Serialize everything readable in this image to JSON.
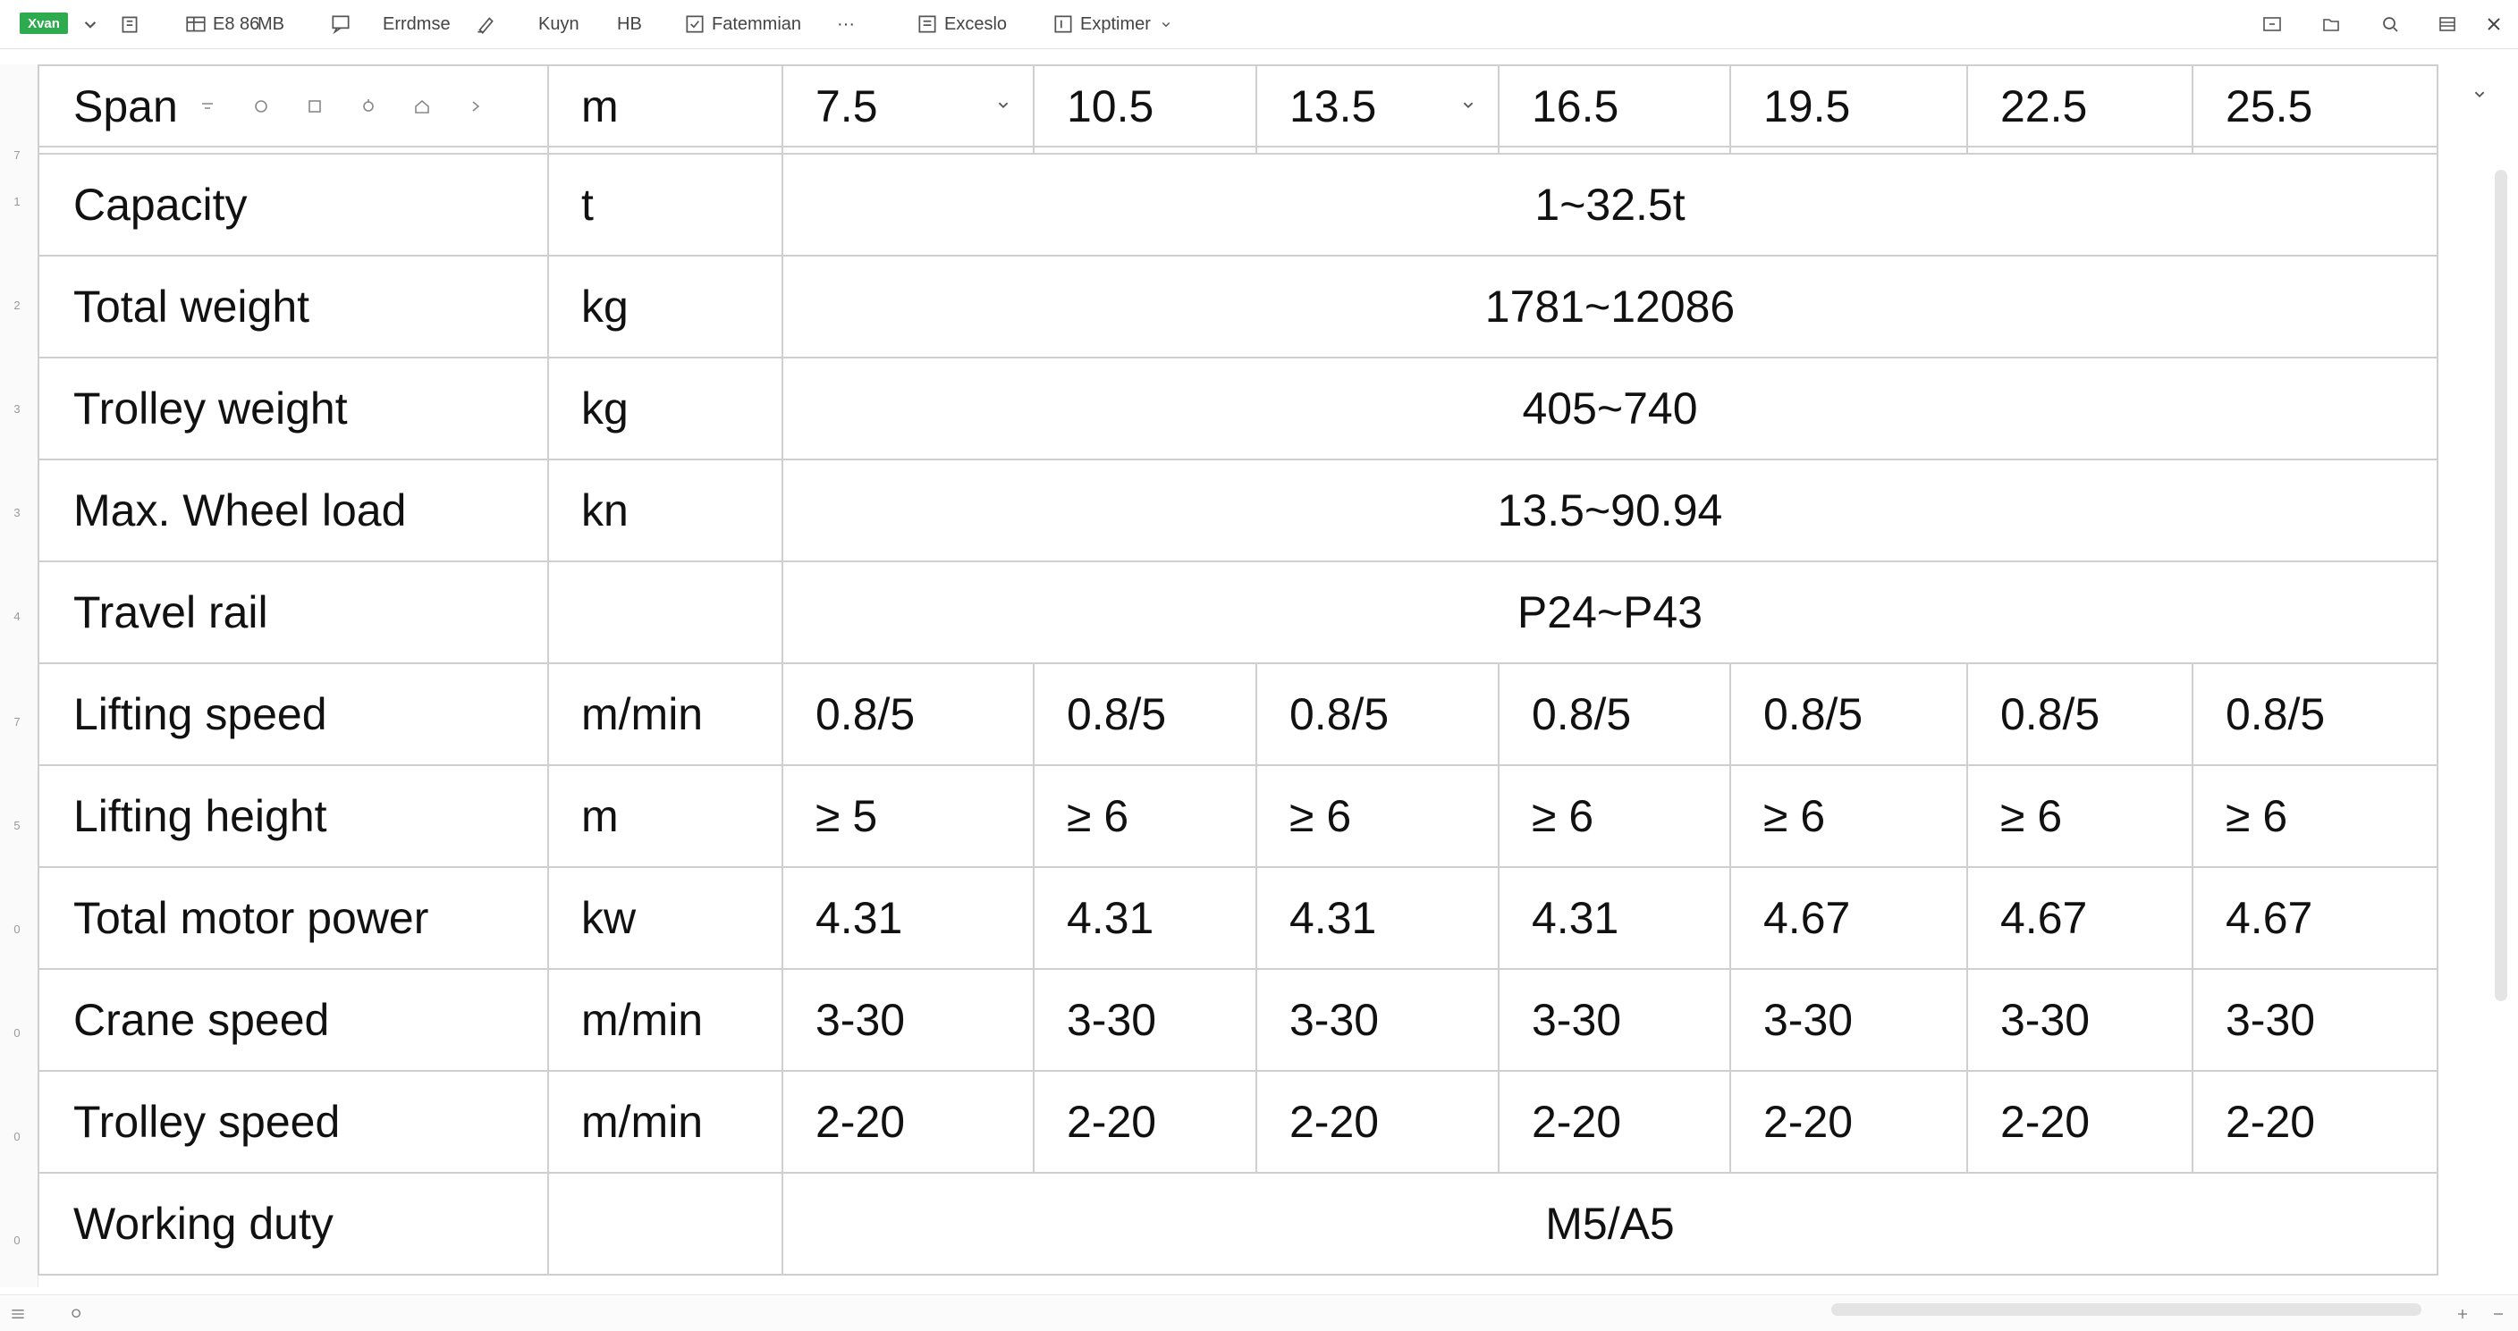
{
  "toolbar": {
    "app_badge": "Xvan",
    "items": [
      {
        "icon": "clipboard-icon",
        "label": ""
      },
      {
        "icon": "table-icon",
        "label": "E8 86"
      },
      {
        "icon": "grid-icon",
        "label": "MB"
      },
      {
        "icon": "comment-icon",
        "label": ""
      },
      {
        "icon": "text-icon",
        "label": "Errdmse"
      },
      {
        "icon": "paint-icon",
        "label": ""
      },
      {
        "icon": "key-icon",
        "label": "Kuyn"
      },
      {
        "icon": "format-icon",
        "label": "HB"
      },
      {
        "icon": "checkbox-icon",
        "label": "Fatemmian"
      },
      {
        "icon": "more-icon",
        "label": "···"
      },
      {
        "icon": "doc-icon",
        "label": "Exceslo"
      },
      {
        "icon": "export-icon",
        "label": "Exptimer"
      }
    ]
  },
  "sheet": {
    "header": {
      "label": "Span",
      "unit": "m",
      "spans": [
        "7.5",
        "10.5",
        "13.5",
        "16.5",
        "19.5",
        "22.5",
        "25.5"
      ]
    },
    "merged_rows": [
      {
        "label": "Capacity",
        "unit": "t",
        "value": "1~32.5t"
      },
      {
        "label": "Total weight",
        "unit": "kg",
        "value": "1781~12086"
      },
      {
        "label": "Trolley weight",
        "unit": "kg",
        "value": "405~740"
      },
      {
        "label": "Max. Wheel load",
        "unit": "kn",
        "value": "13.5~90.94"
      },
      {
        "label": "Travel rail",
        "unit": "",
        "value": "P24~P43"
      }
    ],
    "value_rows": [
      {
        "label": "Lifting speed",
        "unit": "m/min",
        "values": [
          "0.8/5",
          "0.8/5",
          "0.8/5",
          "0.8/5",
          "0.8/5",
          "0.8/5",
          "0.8/5"
        ]
      },
      {
        "label": "Lifting height",
        "unit": "m",
        "values": [
          "≥ 5",
          "≥ 6",
          "≥ 6",
          "≥ 6",
          "≥ 6",
          "≥ 6",
          "≥ 6"
        ]
      },
      {
        "label": "Total motor power",
        "unit": "kw",
        "values": [
          "4.31",
          "4.31",
          "4.31",
          "4.31",
          "4.67",
          "4.67",
          "4.67"
        ]
      },
      {
        "label": "Crane speed",
        "unit": "m/min",
        "values": [
          "3-30",
          "3-30",
          "3-30",
          "3-30",
          "3-30",
          "3-30",
          "3-30"
        ]
      },
      {
        "label": "Trolley speed",
        "unit": "m/min",
        "values": [
          "2-20",
          "2-20",
          "2-20",
          "2-20",
          "2-20",
          "2-20",
          "2-20"
        ]
      }
    ],
    "last_row": {
      "label": "Working duty",
      "unit": "",
      "value": "M5/A5"
    }
  },
  "row_numbers": [
    "7",
    "1",
    "2",
    "3",
    "3",
    "4",
    "7",
    "5",
    "0",
    "0",
    "0",
    "0"
  ]
}
